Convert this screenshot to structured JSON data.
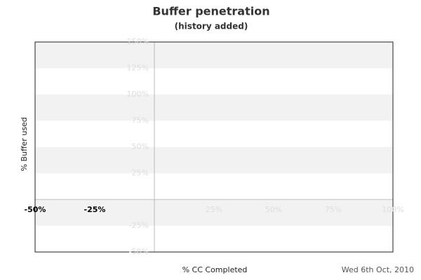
{
  "chart_data": {
    "type": "scatter",
    "title": "Buffer penetration",
    "subtitle": "(history added)",
    "x_label": "% CC Completed",
    "y_label": "% Buffer used",
    "date": "Wed 6th Oct, 2010",
    "xlim": [
      -50,
      100
    ],
    "xticks": [
      {
        "value": -50,
        "label": "-50%"
      },
      {
        "value": -25,
        "label": "-25%"
      },
      {
        "value": 25,
        "label": "25%"
      },
      {
        "value": 50,
        "label": "50%"
      },
      {
        "value": 75,
        "label": "75%"
      },
      {
        "value": 100,
        "label": "100%"
      }
    ],
    "ylim": [
      -50,
      150
    ],
    "yticks": [
      {
        "value": 150,
        "label": "150%"
      },
      {
        "value": 125,
        "label": "125%"
      },
      {
        "value": 100,
        "label": "100%"
      },
      {
        "value": 75,
        "label": "75%"
      },
      {
        "value": 50,
        "label": "50%"
      },
      {
        "value": 25,
        "label": "25%"
      },
      {
        "value": -25,
        "label": "-25%"
      },
      {
        "value": -50,
        "label": "-50%"
      }
    ]
  }
}
